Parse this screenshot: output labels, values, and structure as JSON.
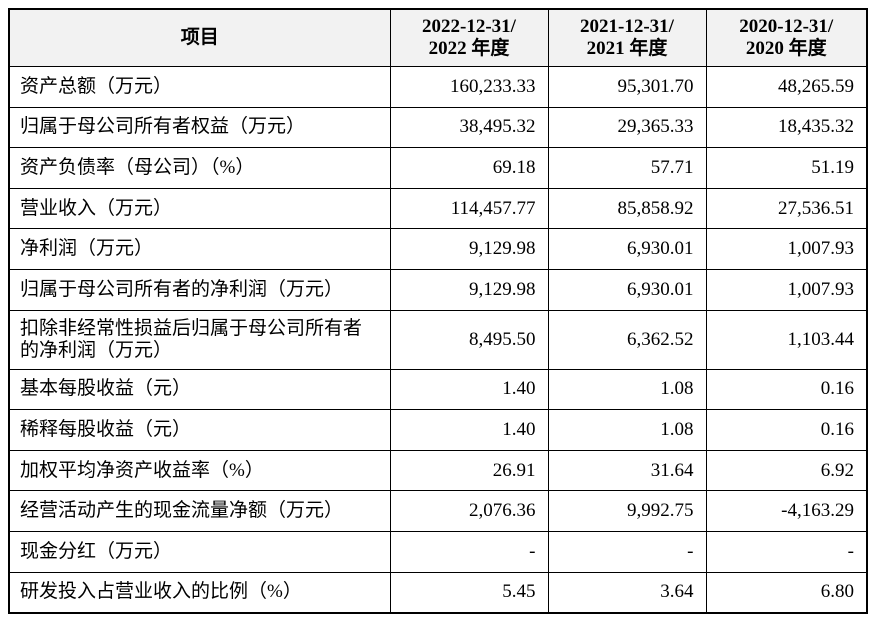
{
  "table": {
    "header": [
      [
        "项目"
      ],
      [
        "2022-12-31/",
        "2022 年度"
      ],
      [
        "2021-12-31/",
        "2021 年度"
      ],
      [
        "2020-12-31/",
        "2020 年度"
      ]
    ],
    "rows": [
      [
        "资产总额（万元）",
        "160,233.33",
        "95,301.70",
        "48,265.59"
      ],
      [
        "归属于母公司所有者权益（万元）",
        "38,495.32",
        "29,365.33",
        "18,435.32"
      ],
      [
        "资产负债率（母公司）（%）",
        "69.18",
        "57.71",
        "51.19"
      ],
      [
        "营业收入（万元）",
        "114,457.77",
        "85,858.92",
        "27,536.51"
      ],
      [
        "净利润（万元）",
        "9,129.98",
        "6,930.01",
        "1,007.93"
      ],
      [
        "归属于母公司所有者的净利润（万元）",
        "9,129.98",
        "6,930.01",
        "1,007.93"
      ],
      [
        "扣除非经常性损益后归属于母公司所有者的净利润（万元）",
        "8,495.50",
        "6,362.52",
        "1,103.44"
      ],
      [
        "基本每股收益（元）",
        "1.40",
        "1.08",
        "0.16"
      ],
      [
        "稀释每股收益（元）",
        "1.40",
        "1.08",
        "0.16"
      ],
      [
        "加权平均净资产收益率（%）",
        "26.91",
        "31.64",
        "6.92"
      ],
      [
        "经营活动产生的现金流量净额（万元）",
        "2,076.36",
        "9,992.75",
        "-4,163.29"
      ],
      [
        "现金分红（万元）",
        "-",
        "-",
        "-"
      ],
      [
        "研发投入占营业收入的比例（%）",
        "5.45",
        "3.64",
        "6.80"
      ]
    ]
  }
}
